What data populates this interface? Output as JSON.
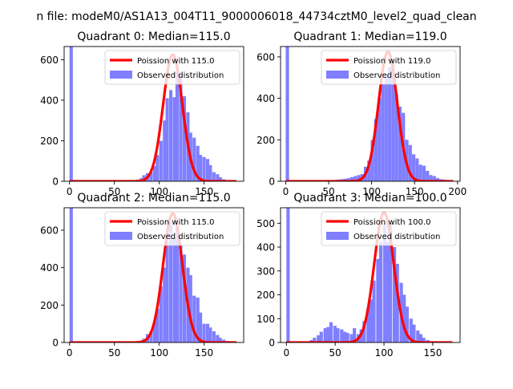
{
  "figure": {
    "suptitle": "n file: modeM0/AS1A13_004T11_9000006018_44734cztM0_level2_quad_clean"
  },
  "colors": {
    "hist": "#7f7fff",
    "poisson": "#ff0000",
    "axis": "#000000"
  },
  "chart_data": [
    {
      "type": "bar",
      "title": "Quadrant 0: Median=115.0",
      "xlim": [
        -6,
        194
      ],
      "ylim": [
        0,
        665
      ],
      "xticks": [
        0,
        50,
        100,
        150
      ],
      "yticks": [
        0,
        200,
        400,
        600
      ],
      "legend": {
        "placement": "top-right",
        "entries": [
          "Poission with 115.0",
          "Observed distribution"
        ]
      },
      "poisson_mean": 115,
      "poisson_peak": 625,
      "bin_width": 3.7,
      "bins": [
        {
          "x": 0,
          "y": 665
        },
        {
          "x": 62,
          "y": 3
        },
        {
          "x": 66,
          "y": 5
        },
        {
          "x": 70,
          "y": 4
        },
        {
          "x": 74,
          "y": 8
        },
        {
          "x": 78,
          "y": 15
        },
        {
          "x": 81,
          "y": 30
        },
        {
          "x": 85,
          "y": 40
        },
        {
          "x": 89,
          "y": 45
        },
        {
          "x": 93,
          "y": 75
        },
        {
          "x": 96,
          "y": 130
        },
        {
          "x": 100,
          "y": 200
        },
        {
          "x": 104,
          "y": 300
        },
        {
          "x": 107,
          "y": 410
        },
        {
          "x": 111,
          "y": 450
        },
        {
          "x": 115,
          "y": 415
        },
        {
          "x": 118,
          "y": 540
        },
        {
          "x": 122,
          "y": 525
        },
        {
          "x": 126,
          "y": 420
        },
        {
          "x": 130,
          "y": 340
        },
        {
          "x": 133,
          "y": 240
        },
        {
          "x": 137,
          "y": 215
        },
        {
          "x": 141,
          "y": 175
        },
        {
          "x": 144,
          "y": 130
        },
        {
          "x": 148,
          "y": 120
        },
        {
          "x": 152,
          "y": 110
        },
        {
          "x": 155,
          "y": 80
        },
        {
          "x": 159,
          "y": 45
        },
        {
          "x": 163,
          "y": 35
        },
        {
          "x": 166,
          "y": 20
        },
        {
          "x": 170,
          "y": 10
        },
        {
          "x": 174,
          "y": 5
        },
        {
          "x": 178,
          "y": 5
        }
      ]
    },
    {
      "type": "bar",
      "title": "Quadrant 1: Median=119.0",
      "xlim": [
        -6,
        203
      ],
      "ylim": [
        0,
        650
      ],
      "xticks": [
        0,
        50,
        100,
        150,
        200
      ],
      "yticks": [
        0,
        200,
        400,
        600
      ],
      "legend": {
        "placement": "top-right",
        "entries": [
          "Poission with 119.0",
          "Observed distribution"
        ]
      },
      "poisson_mean": 119,
      "poisson_peak": 625,
      "bin_width": 3.9,
      "bins": [
        {
          "x": 0,
          "y": 650
        },
        {
          "x": 43,
          "y": 4
        },
        {
          "x": 47,
          "y": 3
        },
        {
          "x": 51,
          "y": 3
        },
        {
          "x": 55,
          "y": 2
        },
        {
          "x": 59,
          "y": 8
        },
        {
          "x": 63,
          "y": 10
        },
        {
          "x": 67,
          "y": 12
        },
        {
          "x": 71,
          "y": 15
        },
        {
          "x": 75,
          "y": 20
        },
        {
          "x": 79,
          "y": 25
        },
        {
          "x": 83,
          "y": 30
        },
        {
          "x": 87,
          "y": 35
        },
        {
          "x": 91,
          "y": 70
        },
        {
          "x": 95,
          "y": 100
        },
        {
          "x": 99,
          "y": 200
        },
        {
          "x": 103,
          "y": 300
        },
        {
          "x": 107,
          "y": 400
        },
        {
          "x": 111,
          "y": 470
        },
        {
          "x": 115,
          "y": 510
        },
        {
          "x": 119,
          "y": 550
        },
        {
          "x": 123,
          "y": 590
        },
        {
          "x": 127,
          "y": 420
        },
        {
          "x": 131,
          "y": 360
        },
        {
          "x": 135,
          "y": 330
        },
        {
          "x": 139,
          "y": 200
        },
        {
          "x": 143,
          "y": 175
        },
        {
          "x": 147,
          "y": 130
        },
        {
          "x": 151,
          "y": 110
        },
        {
          "x": 155,
          "y": 80
        },
        {
          "x": 159,
          "y": 75
        },
        {
          "x": 163,
          "y": 50
        },
        {
          "x": 167,
          "y": 30
        },
        {
          "x": 171,
          "y": 25
        },
        {
          "x": 175,
          "y": 15
        },
        {
          "x": 179,
          "y": 10
        },
        {
          "x": 183,
          "y": 8
        },
        {
          "x": 187,
          "y": 5
        }
      ]
    },
    {
      "type": "bar",
      "title": "Quadrant 2: Median=115.0",
      "xlim": [
        -6,
        194
      ],
      "ylim": [
        0,
        720
      ],
      "xticks": [
        0,
        50,
        100,
        150
      ],
      "yticks": [
        0,
        200,
        400,
        600
      ],
      "legend": {
        "placement": "top-right",
        "entries": [
          "Poission with 115.0",
          "Observed distribution"
        ]
      },
      "poisson_mean": 115,
      "poisson_peak": 690,
      "bin_width": 3.7,
      "bins": [
        {
          "x": 0,
          "y": 720
        },
        {
          "x": 70,
          "y": 3
        },
        {
          "x": 74,
          "y": 5
        },
        {
          "x": 78,
          "y": 10
        },
        {
          "x": 81,
          "y": 20
        },
        {
          "x": 85,
          "y": 45
        },
        {
          "x": 89,
          "y": 60
        },
        {
          "x": 93,
          "y": 110
        },
        {
          "x": 96,
          "y": 180
        },
        {
          "x": 100,
          "y": 300
        },
        {
          "x": 104,
          "y": 400
        },
        {
          "x": 107,
          "y": 540
        },
        {
          "x": 111,
          "y": 640
        },
        {
          "x": 115,
          "y": 560
        },
        {
          "x": 118,
          "y": 620
        },
        {
          "x": 122,
          "y": 520
        },
        {
          "x": 126,
          "y": 470
        },
        {
          "x": 130,
          "y": 400
        },
        {
          "x": 133,
          "y": 360
        },
        {
          "x": 137,
          "y": 250
        },
        {
          "x": 141,
          "y": 240
        },
        {
          "x": 144,
          "y": 160
        },
        {
          "x": 148,
          "y": 100
        },
        {
          "x": 152,
          "y": 100
        },
        {
          "x": 155,
          "y": 80
        },
        {
          "x": 159,
          "y": 60
        },
        {
          "x": 163,
          "y": 40
        },
        {
          "x": 166,
          "y": 25
        },
        {
          "x": 170,
          "y": 15
        },
        {
          "x": 174,
          "y": 8
        },
        {
          "x": 178,
          "y": 5
        }
      ]
    },
    {
      "type": "bar",
      "title": "Quadrant 3: Median=100.0",
      "xlim": [
        -6,
        178
      ],
      "ylim": [
        0,
        565
      ],
      "xticks": [
        0,
        50,
        100,
        150
      ],
      "yticks": [
        0,
        100,
        200,
        300,
        400,
        500
      ],
      "legend": {
        "placement": "top-right",
        "entries": [
          "Poission with 100.0",
          "Observed distribution"
        ]
      },
      "poisson_mean": 100,
      "poisson_peak": 545,
      "bin_width": 3.4,
      "bins": [
        {
          "x": 0,
          "y": 565
        },
        {
          "x": 17,
          "y": 3
        },
        {
          "x": 20,
          "y": 5
        },
        {
          "x": 24,
          "y": 10
        },
        {
          "x": 27,
          "y": 20
        },
        {
          "x": 31,
          "y": 30
        },
        {
          "x": 34,
          "y": 45
        },
        {
          "x": 38,
          "y": 60
        },
        {
          "x": 41,
          "y": 65
        },
        {
          "x": 44,
          "y": 85
        },
        {
          "x": 48,
          "y": 70
        },
        {
          "x": 51,
          "y": 60
        },
        {
          "x": 55,
          "y": 55
        },
        {
          "x": 58,
          "y": 45
        },
        {
          "x": 61,
          "y": 40
        },
        {
          "x": 65,
          "y": 35
        },
        {
          "x": 68,
          "y": 60
        },
        {
          "x": 72,
          "y": 35
        },
        {
          "x": 75,
          "y": 55
        },
        {
          "x": 78,
          "y": 90
        },
        {
          "x": 82,
          "y": 140
        },
        {
          "x": 85,
          "y": 180
        },
        {
          "x": 88,
          "y": 260
        },
        {
          "x": 92,
          "y": 350
        },
        {
          "x": 95,
          "y": 420
        },
        {
          "x": 99,
          "y": 500
        },
        {
          "x": 102,
          "y": 420
        },
        {
          "x": 105,
          "y": 500
        },
        {
          "x": 109,
          "y": 400
        },
        {
          "x": 112,
          "y": 330
        },
        {
          "x": 116,
          "y": 250
        },
        {
          "x": 119,
          "y": 200
        },
        {
          "x": 122,
          "y": 150
        },
        {
          "x": 126,
          "y": 100
        },
        {
          "x": 129,
          "y": 75
        },
        {
          "x": 133,
          "y": 50
        },
        {
          "x": 136,
          "y": 35
        },
        {
          "x": 139,
          "y": 20
        },
        {
          "x": 143,
          "y": 10
        },
        {
          "x": 146,
          "y": 5
        },
        {
          "x": 150,
          "y": 3
        }
      ]
    }
  ]
}
